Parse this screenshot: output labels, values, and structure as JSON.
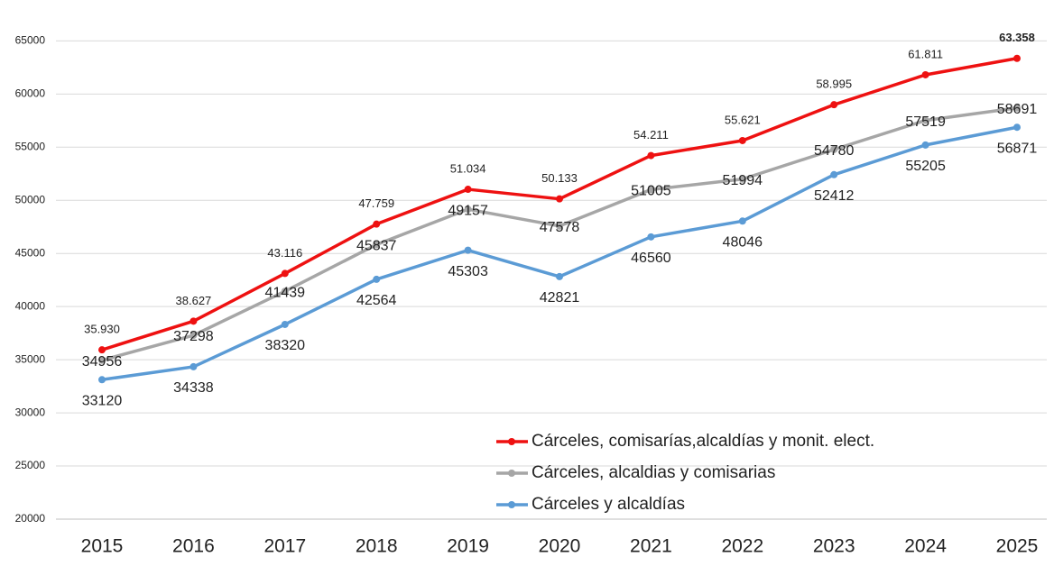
{
  "chart_data": {
    "type": "line",
    "categories": [
      "2015",
      "2016",
      "2017",
      "2018",
      "2019",
      "2020",
      "2021",
      "2022",
      "2023",
      "2024",
      "2025"
    ],
    "series": [
      {
        "name": "Cárceles, comisarías,alcaldías y monit. elect.",
        "color": "#ee1111",
        "values": [
          35930,
          38627,
          43116,
          47759,
          51034,
          50133,
          54211,
          55621,
          58995,
          61811,
          63358
        ],
        "value_labels": [
          "35.930",
          "38.627",
          "43.116",
          "47.759",
          "51.034",
          "50.133",
          "54.211",
          "55.621",
          "58.995",
          "61.811",
          "63.358"
        ]
      },
      {
        "name": "Cárceles, alcaldias y comisarias",
        "color": "#a6a6a6",
        "values": [
          34956,
          37298,
          41439,
          45837,
          49157,
          47578,
          51005,
          51994,
          54780,
          57519,
          58691
        ]
      },
      {
        "name": "Cárceles y alcaldías",
        "color": "#5b9bd5",
        "values": [
          33120,
          34338,
          38320,
          42564,
          45303,
          42821,
          46560,
          48046,
          52412,
          55205,
          56871
        ]
      }
    ],
    "ylim": [
      20000,
      68000
    ],
    "yticks": [
      20000,
      25000,
      30000,
      35000,
      40000,
      45000,
      50000,
      55000,
      60000,
      65000
    ],
    "grid": true
  }
}
